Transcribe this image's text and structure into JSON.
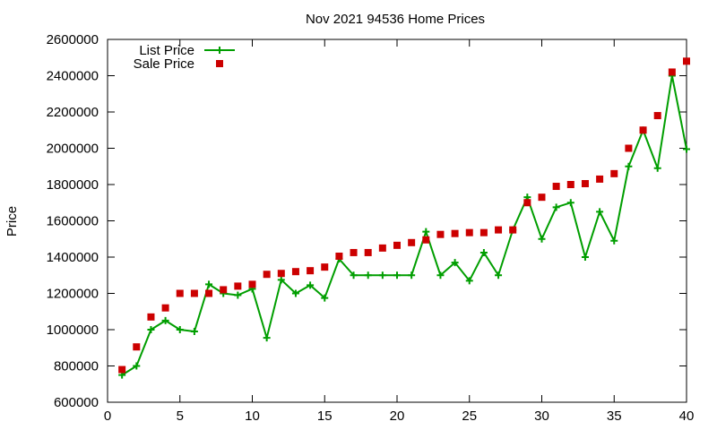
{
  "chart_data": {
    "type": "line",
    "title": "Nov 2021 94536 Home Prices",
    "xlabel": "",
    "ylabel": "Price",
    "xlim": [
      0,
      40
    ],
    "ylim": [
      600000,
      2600000
    ],
    "xticks": [
      "0",
      "5",
      "10",
      "15",
      "20",
      "25",
      "30",
      "35",
      "40"
    ],
    "yticks": [
      "600000",
      "800000",
      "1000000",
      "1200000",
      "1400000",
      "1600000",
      "1800000",
      "2000000",
      "2200000",
      "2400000",
      "2600000"
    ],
    "legend_position": "top-left",
    "series": [
      {
        "name": "List Price",
        "style": "line+cross",
        "color": "#009E00",
        "x": [
          1,
          2,
          3,
          4,
          5,
          6,
          7,
          8,
          9,
          10,
          11,
          12,
          13,
          14,
          15,
          16,
          17,
          18,
          19,
          20,
          21,
          22,
          23,
          24,
          25,
          26,
          27,
          28,
          29,
          30,
          31,
          32,
          33,
          34,
          35,
          36,
          37,
          38,
          39,
          40
        ],
        "values": [
          750000,
          800000,
          1000000,
          1050000,
          1000000,
          990000,
          1250000,
          1200000,
          1190000,
          1225000,
          955000,
          1275000,
          1200000,
          1245000,
          1175000,
          1390000,
          1300000,
          1300000,
          1300000,
          1300000,
          1300000,
          1540000,
          1300000,
          1370000,
          1270000,
          1425000,
          1300000,
          1550000,
          1730000,
          1500000,
          1675000,
          1700000,
          1400000,
          1650000,
          1490000,
          1900000,
          2100000,
          1890000,
          2400000,
          1995000
        ]
      },
      {
        "name": "Sale Price",
        "style": "square",
        "color": "#CC0000",
        "x": [
          1,
          2,
          3,
          4,
          5,
          6,
          7,
          8,
          9,
          10,
          11,
          12,
          13,
          14,
          15,
          16,
          17,
          18,
          19,
          20,
          21,
          22,
          23,
          24,
          25,
          26,
          27,
          28,
          29,
          30,
          31,
          32,
          33,
          34,
          35,
          36,
          37,
          38,
          39,
          40
        ],
        "values": [
          780000,
          905000,
          1070000,
          1120000,
          1200000,
          1200000,
          1200000,
          1220000,
          1240000,
          1250000,
          1305000,
          1310000,
          1320000,
          1325000,
          1345000,
          1405000,
          1425000,
          1425000,
          1450000,
          1465000,
          1480000,
          1495000,
          1525000,
          1530000,
          1535000,
          1535000,
          1550000,
          1550000,
          1700000,
          1730000,
          1790000,
          1800000,
          1805000,
          1830000,
          1860000,
          2000000,
          2100000,
          2180000,
          2420000,
          2480000
        ]
      }
    ]
  }
}
